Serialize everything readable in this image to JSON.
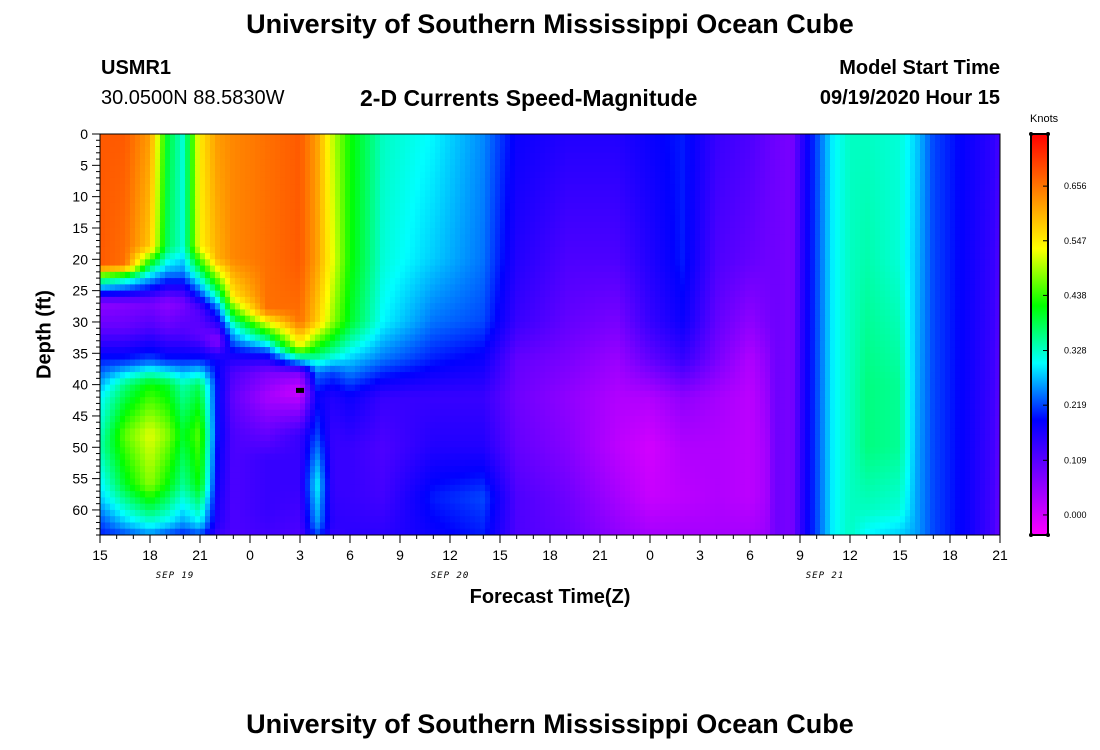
{
  "header": {
    "title": "University of Southern Mississippi Ocean Cube",
    "station": "USMR1",
    "coords": "30.0500N 88.5830W",
    "subtitle": "2-D Currents Speed-Magnitude",
    "model_label": "Model Start Time",
    "model_time": "09/19/2020 Hour 15"
  },
  "footer": {
    "title": "University of Southern Mississippi Ocean Cube"
  },
  "colors": {
    "background": "#ffffff",
    "scale": [
      "#ff00ff",
      "#7f00ff",
      "#0000ff",
      "#00ffff",
      "#00ff00",
      "#ffff00",
      "#ff8000",
      "#ff0000"
    ]
  },
  "chart_data": {
    "type": "heatmap",
    "title": "2-D Currents Speed-Magnitude",
    "xlabel": "Forecast Time(Z)",
    "ylabel": "Depth (ft)",
    "x_ticks": [
      "15",
      "18",
      "21",
      "0",
      "3",
      "6",
      "9",
      "12",
      "15",
      "18",
      "21",
      "0",
      "3",
      "6",
      "9",
      "12",
      "15",
      "18",
      "21"
    ],
    "x_range_hours": [
      0,
      54
    ],
    "date_labels": [
      {
        "text": "SEP 19",
        "hour": 4.5
      },
      {
        "text": "SEP 20",
        "hour": 21
      },
      {
        "text": "SEP 21",
        "hour": 43.5
      }
    ],
    "y_ticks": [
      0,
      5,
      10,
      15,
      20,
      25,
      30,
      35,
      40,
      45,
      50,
      55,
      60
    ],
    "y_range": [
      0,
      64
    ],
    "colorbar": {
      "title": "Knots",
      "ticks": [
        0.0,
        0.109,
        0.219,
        0.328,
        0.438,
        0.547,
        0.656
      ],
      "tick_labels": [
        "0.000",
        "0.109",
        "0.219",
        "0.328",
        "0.438",
        "0.547",
        "0.656"
      ],
      "range": [
        -0.04,
        0.76
      ]
    },
    "marker": {
      "hour": 12,
      "depth": 41
    },
    "profiles": [
      {
        "hour": 0,
        "z": [
          0,
          21,
          23,
          27,
          31,
          36,
          42,
          50,
          58,
          62,
          64
        ],
        "v": [
          0.68,
          0.68,
          0.4,
          0.06,
          0.1,
          0.2,
          0.3,
          0.34,
          0.28,
          0.22,
          0.2
        ]
      },
      {
        "hour": 1.5,
        "z": [
          0,
          21,
          23,
          27,
          31,
          36,
          40,
          48,
          56,
          62,
          64
        ],
        "v": [
          0.68,
          0.66,
          0.35,
          0.07,
          0.1,
          0.2,
          0.36,
          0.46,
          0.4,
          0.28,
          0.22
        ]
      },
      {
        "hour": 3,
        "z": [
          0,
          18,
          22,
          27,
          31,
          36,
          40,
          48,
          56,
          62,
          64
        ],
        "v": [
          0.62,
          0.58,
          0.32,
          0.08,
          0.12,
          0.22,
          0.42,
          0.52,
          0.48,
          0.32,
          0.25
        ]
      },
      {
        "hour": 4,
        "z": [
          0,
          18,
          22,
          27,
          31,
          36,
          40,
          48,
          56,
          62,
          64
        ],
        "v": [
          0.4,
          0.38,
          0.26,
          0.06,
          0.1,
          0.2,
          0.4,
          0.48,
          0.42,
          0.3,
          0.22
        ]
      },
      {
        "hour": 5,
        "z": [
          0,
          18,
          22,
          27,
          32,
          36,
          40,
          48,
          56,
          62,
          64
        ],
        "v": [
          0.32,
          0.32,
          0.25,
          0.08,
          0.12,
          0.2,
          0.34,
          0.4,
          0.35,
          0.26,
          0.2
        ]
      },
      {
        "hour": 6,
        "z": [
          0,
          18,
          23,
          28,
          32,
          36,
          40,
          48,
          56,
          62,
          64
        ],
        "v": [
          0.55,
          0.54,
          0.32,
          0.12,
          0.1,
          0.2,
          0.38,
          0.46,
          0.42,
          0.3,
          0.22
        ]
      },
      {
        "hour": 7,
        "z": [
          0,
          20,
          24,
          28,
          33,
          36,
          40,
          48,
          56,
          62,
          64
        ],
        "v": [
          0.62,
          0.6,
          0.42,
          0.22,
          0.06,
          0.18,
          0.2,
          0.2,
          0.18,
          0.16,
          0.14
        ]
      },
      {
        "hour": 8,
        "z": [
          0,
          20,
          26,
          31,
          35,
          38,
          42,
          48,
          56,
          62,
          64
        ],
        "v": [
          0.64,
          0.64,
          0.55,
          0.3,
          0.18,
          0.12,
          0.1,
          0.12,
          0.12,
          0.12,
          0.12
        ]
      },
      {
        "hour": 10,
        "z": [
          0,
          20,
          28,
          32,
          35,
          38,
          42,
          46,
          52,
          60,
          64
        ],
        "v": [
          0.66,
          0.66,
          0.66,
          0.4,
          0.2,
          0.08,
          0.04,
          0.08,
          0.14,
          0.14,
          0.13
        ]
      },
      {
        "hour": 12,
        "z": [
          0,
          20,
          30,
          34,
          36,
          38,
          41,
          44,
          48,
          56,
          64
        ],
        "v": [
          0.68,
          0.68,
          0.66,
          0.52,
          0.3,
          0.08,
          0.0,
          0.06,
          0.14,
          0.14,
          0.12
        ]
      },
      {
        "hour": 13,
        "z": [
          0,
          20,
          30,
          35,
          38,
          42,
          48,
          56,
          62,
          64
        ],
        "v": [
          0.62,
          0.62,
          0.58,
          0.38,
          0.24,
          0.18,
          0.22,
          0.3,
          0.26,
          0.22
        ]
      },
      {
        "hour": 14,
        "z": [
          0,
          20,
          30,
          35,
          38,
          42,
          48,
          56,
          62,
          64
        ],
        "v": [
          0.5,
          0.52,
          0.48,
          0.34,
          0.22,
          0.16,
          0.14,
          0.14,
          0.15,
          0.14
        ]
      },
      {
        "hour": 15,
        "z": [
          0,
          20,
          30,
          36,
          42,
          50,
          58,
          64
        ],
        "v": [
          0.42,
          0.42,
          0.4,
          0.28,
          0.18,
          0.14,
          0.14,
          0.15
        ]
      },
      {
        "hour": 17,
        "z": [
          0,
          20,
          30,
          36,
          42,
          50,
          58,
          64
        ],
        "v": [
          0.33,
          0.32,
          0.3,
          0.24,
          0.14,
          0.12,
          0.13,
          0.15
        ]
      },
      {
        "hour": 20,
        "z": [
          0,
          20,
          30,
          36,
          42,
          50,
          58,
          64
        ],
        "v": [
          0.3,
          0.28,
          0.24,
          0.2,
          0.14,
          0.16,
          0.2,
          0.18
        ]
      },
      {
        "hour": 23,
        "z": [
          0,
          20,
          30,
          36,
          42,
          50,
          58,
          64
        ],
        "v": [
          0.25,
          0.24,
          0.22,
          0.18,
          0.14,
          0.16,
          0.22,
          0.2
        ]
      },
      {
        "hour": 25,
        "z": [
          0,
          20,
          30,
          36,
          42,
          50,
          58,
          64
        ],
        "v": [
          0.18,
          0.16,
          0.14,
          0.1,
          0.09,
          0.1,
          0.12,
          0.12
        ]
      },
      {
        "hour": 28,
        "z": [
          0,
          20,
          30,
          36,
          42,
          50,
          58,
          64
        ],
        "v": [
          0.16,
          0.12,
          0.1,
          0.08,
          0.06,
          0.07,
          0.09,
          0.1
        ]
      },
      {
        "hour": 31,
        "z": [
          0,
          20,
          30,
          36,
          42,
          50,
          58,
          64
        ],
        "v": [
          0.16,
          0.12,
          0.08,
          0.05,
          0.03,
          0.02,
          0.04,
          0.06
        ]
      },
      {
        "hour": 33,
        "z": [
          0,
          20,
          30,
          36,
          42,
          50,
          58,
          64
        ],
        "v": [
          0.18,
          0.16,
          0.14,
          0.1,
          0.03,
          0.0,
          0.01,
          0.04
        ]
      },
      {
        "hour": 35,
        "z": [
          0,
          20,
          30,
          36,
          42,
          50,
          58,
          64
        ],
        "v": [
          0.2,
          0.2,
          0.18,
          0.14,
          0.06,
          0.03,
          0.02,
          0.04
        ]
      },
      {
        "hour": 37,
        "z": [
          0,
          20,
          30,
          36,
          42,
          50,
          58,
          64
        ],
        "v": [
          0.14,
          0.12,
          0.1,
          0.08,
          0.04,
          0.03,
          0.03,
          0.04
        ]
      },
      {
        "hour": 39,
        "z": [
          0,
          20,
          30,
          36,
          42,
          50,
          58,
          64
        ],
        "v": [
          0.12,
          0.1,
          0.06,
          0.03,
          0.02,
          0.02,
          0.02,
          0.04
        ]
      },
      {
        "hour": 40,
        "z": [
          0,
          20,
          30,
          36,
          42,
          50,
          58,
          64
        ],
        "v": [
          0.1,
          0.09,
          0.08,
          0.06,
          0.05,
          0.04,
          0.04,
          0.05
        ]
      },
      {
        "hour": 40.5,
        "z": [
          0,
          64
        ],
        "v": [
          0.09,
          0.09
        ]
      },
      {
        "hour": 41.5,
        "z": [
          0,
          64
        ],
        "v": [
          0.08,
          0.08
        ]
      },
      {
        "hour": 42.3,
        "z": [
          0,
          64
        ],
        "v": [
          0.17,
          0.17
        ]
      },
      {
        "hour": 43,
        "z": [
          0,
          64
        ],
        "v": [
          0.22,
          0.22
        ]
      },
      {
        "hour": 44,
        "z": [
          0,
          64
        ],
        "v": [
          0.3,
          0.3
        ]
      },
      {
        "hour": 45,
        "z": [
          0,
          64
        ],
        "v": [
          0.33,
          0.33
        ]
      },
      {
        "hour": 46,
        "z": [
          0,
          20,
          40,
          50,
          60,
          64
        ],
        "v": [
          0.33,
          0.34,
          0.36,
          0.36,
          0.33,
          0.3
        ]
      },
      {
        "hour": 48,
        "z": [
          0,
          20,
          40,
          50,
          60,
          64
        ],
        "v": [
          0.32,
          0.32,
          0.35,
          0.35,
          0.32,
          0.28
        ]
      },
      {
        "hour": 49,
        "z": [
          0,
          64
        ],
        "v": [
          0.28,
          0.26
        ]
      },
      {
        "hour": 50,
        "z": [
          0,
          64
        ],
        "v": [
          0.22,
          0.22
        ]
      },
      {
        "hour": 52,
        "z": [
          0,
          64
        ],
        "v": [
          0.18,
          0.18
        ]
      },
      {
        "hour": 53.5,
        "z": [
          0,
          64
        ],
        "v": [
          0.15,
          0.13
        ]
      },
      {
        "hour": 54,
        "z": [
          0,
          64
        ],
        "v": [
          0.13,
          0.1
        ]
      }
    ]
  }
}
